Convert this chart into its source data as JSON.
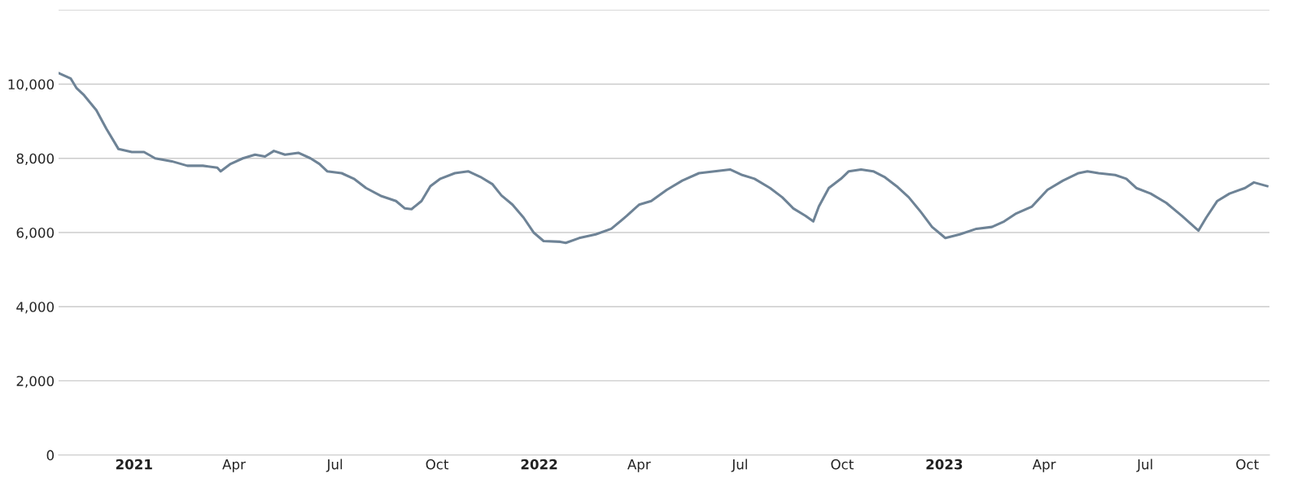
{
  "chart_data": {
    "type": "line",
    "x": [
      "2020-10-25",
      "2020-11-05",
      "2020-11-10",
      "2020-11-17",
      "2020-11-28",
      "2020-12-07",
      "2020-12-18",
      "2020-12-30",
      "2021-01-10",
      "2021-01-20",
      "2021-02-04",
      "2021-02-18",
      "2021-03-04",
      "2021-03-17",
      "2021-03-20",
      "2021-03-29",
      "2021-04-09",
      "2021-04-20",
      "2021-04-29",
      "2021-05-07",
      "2021-05-17",
      "2021-05-29",
      "2021-06-09",
      "2021-06-17",
      "2021-06-24",
      "2021-07-07",
      "2021-07-18",
      "2021-07-29",
      "2021-08-12",
      "2021-08-25",
      "2021-09-02",
      "2021-09-08",
      "2021-09-17",
      "2021-09-25",
      "2021-10-04",
      "2021-10-17",
      "2021-10-29",
      "2021-11-09",
      "2021-11-20",
      "2021-11-28",
      "2021-12-08",
      "2021-12-18",
      "2021-12-27",
      "2022-01-05",
      "2022-01-20",
      "2022-01-25",
      "2022-02-06",
      "2022-02-21",
      "2022-03-07",
      "2022-03-21",
      "2022-04-01",
      "2022-04-12",
      "2022-04-26",
      "2022-05-10",
      "2022-05-25",
      "2022-06-08",
      "2022-06-22",
      "2022-07-03",
      "2022-07-14",
      "2022-07-28",
      "2022-08-08",
      "2022-08-18",
      "2022-08-29",
      "2022-09-05",
      "2022-09-10",
      "2022-09-19",
      "2022-09-30",
      "2022-10-07",
      "2022-10-18",
      "2022-10-29",
      "2022-11-08",
      "2022-11-19",
      "2022-11-30",
      "2022-12-11",
      "2022-12-21",
      "2022-12-31",
      "2023-01-02",
      "2023-01-15",
      "2023-01-30",
      "2023-02-13",
      "2023-02-24",
      "2023-03-06",
      "2023-03-21",
      "2023-04-04",
      "2023-04-18",
      "2023-05-02",
      "2023-05-10",
      "2023-05-20",
      "2023-06-04",
      "2023-06-14",
      "2023-06-23",
      "2023-07-06",
      "2023-07-20",
      "2023-08-03",
      "2023-08-18",
      "2023-08-25",
      "2023-09-04",
      "2023-09-15",
      "2023-09-29",
      "2023-10-07",
      "2023-10-19"
    ],
    "series": [
      {
        "color": "#6e8396",
        "values": [
          10300,
          10150,
          9900,
          9700,
          9300,
          8800,
          8250,
          8170,
          8170,
          8000,
          7920,
          7800,
          7800,
          7750,
          7650,
          7850,
          8000,
          8100,
          8050,
          8200,
          8100,
          8150,
          8000,
          7850,
          7650,
          7600,
          7450,
          7200,
          6980,
          6850,
          6650,
          6630,
          6850,
          7250,
          7450,
          7600,
          7650,
          7500,
          7300,
          7000,
          6750,
          6400,
          6000,
          5770,
          5750,
          5720,
          5850,
          5950,
          6100,
          6450,
          6750,
          6850,
          7150,
          7400,
          7600,
          7650,
          7700,
          7550,
          7450,
          7200,
          6950,
          6650,
          6450,
          6300,
          6700,
          7200,
          7450,
          7650,
          7700,
          7650,
          7500,
          7250,
          6950,
          6550,
          6150,
          5900,
          5850,
          5950,
          6100,
          6150,
          6300,
          6500,
          6700,
          7150,
          7400,
          7600,
          7650,
          7600,
          7550,
          7450,
          7200,
          7050,
          6800,
          6450,
          6050,
          6400,
          6850,
          7050,
          7200,
          7350,
          7250
        ]
      }
    ],
    "xlim": [
      "2020-10-25",
      "2023-10-21"
    ],
    "xticks": [
      {
        "value": "2021-01-01",
        "label": "2021"
      },
      {
        "value": "2021-04-01",
        "label": "Apr"
      },
      {
        "value": "2021-07-01",
        "label": "Jul"
      },
      {
        "value": "2021-10-01",
        "label": "Oct"
      },
      {
        "value": "2022-01-01",
        "label": "2022"
      },
      {
        "value": "2022-04-01",
        "label": "Apr"
      },
      {
        "value": "2022-07-01",
        "label": "Jul"
      },
      {
        "value": "2022-10-01",
        "label": "Oct"
      },
      {
        "value": "2023-01-01",
        "label": "2023"
      },
      {
        "value": "2023-04-01",
        "label": "Apr"
      },
      {
        "value": "2023-07-01",
        "label": "Jul"
      },
      {
        "value": "2023-10-01",
        "label": "Oct"
      }
    ],
    "ylim": [
      0,
      12000
    ],
    "yticks": [
      {
        "value": 0,
        "label": "0"
      },
      {
        "value": 2000,
        "label": "2,000"
      },
      {
        "value": 4000,
        "label": "4,000"
      },
      {
        "value": 6000,
        "label": "6,000"
      },
      {
        "value": 8000,
        "label": "8,000"
      },
      {
        "value": 10000,
        "label": "10,000"
      },
      {
        "value": 12000,
        "label": null
      }
    ],
    "grid": "y",
    "marker": "none",
    "line_style": "solid"
  }
}
